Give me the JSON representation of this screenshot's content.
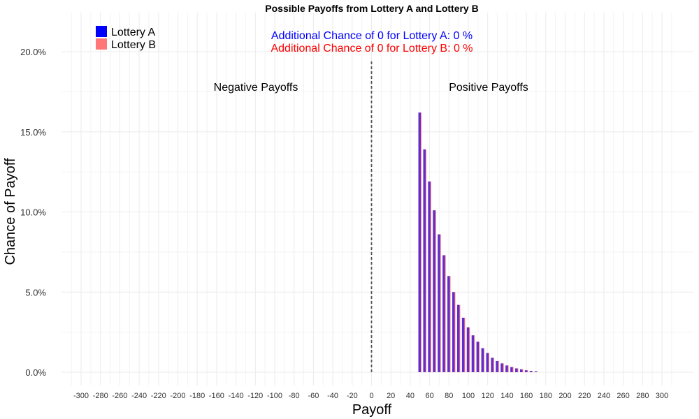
{
  "chart_data": {
    "type": "bar",
    "title": "Possible Payoffs from Lottery A and Lottery B",
    "xlabel": "Payoff",
    "ylabel": "Chance of Payoff",
    "xlim": [
      -310,
      310
    ],
    "ylim": [
      0,
      0.2
    ],
    "x_ticks": [
      -300,
      -280,
      -260,
      -240,
      -220,
      -200,
      -180,
      -160,
      -140,
      -120,
      -100,
      -80,
      -60,
      -40,
      -20,
      0,
      20,
      40,
      60,
      80,
      100,
      120,
      140,
      160,
      180,
      200,
      220,
      240,
      260,
      280,
      300
    ],
    "y_ticks": [
      0,
      0.05,
      0.1,
      0.15,
      0.2
    ],
    "y_tick_labels": [
      "0.0%",
      "5.0%",
      "10.0%",
      "15.0%",
      "20.0%"
    ],
    "grid": true,
    "legend_position": "top-left",
    "reference_line_x": 0,
    "region_labels": [
      "Negative Payoffs",
      "Positive Payoffs"
    ],
    "annotations": [
      {
        "text": "Additional Chance of 0 for Lottery A:  0 %",
        "color": "#0000ff"
      },
      {
        "text": "Additional Chance of 0 for Lottery B:  0 %",
        "color": "#ff0000"
      }
    ],
    "x": [
      50,
      55,
      60,
      65,
      70,
      75,
      80,
      85,
      90,
      95,
      100,
      105,
      110,
      115,
      120,
      125,
      130,
      135,
      140,
      145,
      150,
      155,
      160,
      165,
      170
    ],
    "series": [
      {
        "name": "Lottery A",
        "color": "#0000ff",
        "values": [
          0.162,
          0.139,
          0.119,
          0.101,
          0.086,
          0.073,
          0.06,
          0.05,
          0.042,
          0.034,
          0.028,
          0.023,
          0.019,
          0.015,
          0.012,
          0.009,
          0.007,
          0.0055,
          0.0042,
          0.0032,
          0.0024,
          0.0018,
          0.0012,
          0.0008,
          0.0005
        ]
      },
      {
        "name": "Lottery B",
        "color": "#ff7777",
        "values": [
          0.162,
          0.139,
          0.119,
          0.101,
          0.086,
          0.073,
          0.06,
          0.05,
          0.042,
          0.034,
          0.028,
          0.023,
          0.019,
          0.015,
          0.012,
          0.009,
          0.007,
          0.0055,
          0.0042,
          0.0032,
          0.0024,
          0.0018,
          0.0012,
          0.0008,
          0.0005
        ]
      }
    ]
  }
}
